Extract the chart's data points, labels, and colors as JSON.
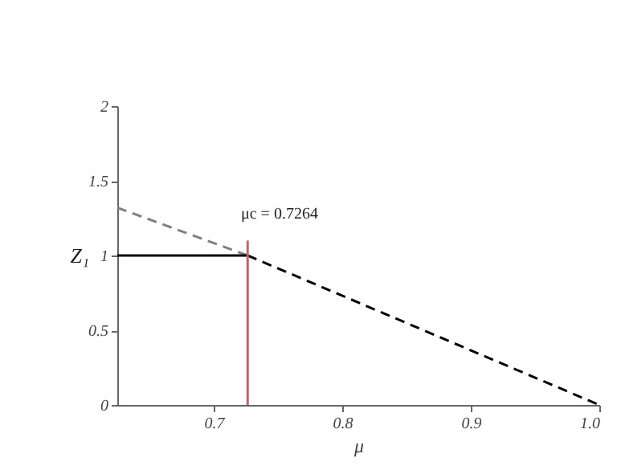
{
  "chart_data": {
    "type": "line",
    "xlabel": "μ",
    "ylabel": "Z₁",
    "xlim": [
      0.625,
      1.0
    ],
    "xticks": [
      0.7,
      0.8,
      0.9,
      {
        "value": 1.0,
        "label": "1.0"
      }
    ],
    "ylim": [
      0,
      2
    ],
    "yticks": [
      0,
      0.5,
      1,
      1.5,
      2
    ],
    "series": [
      {
        "color": "#808080",
        "line_style": "dashed",
        "x": [
          0.625,
          0.7264
        ],
        "values": [
          1.32,
          1
        ]
      },
      {
        "color": "#000000",
        "line_style": "solid",
        "x": [
          0.625,
          0.7264
        ],
        "values": [
          1,
          1
        ]
      },
      {
        "color": "#000000",
        "line_style": "dashed",
        "x": [
          0.7264,
          1.0
        ],
        "values": [
          1,
          0
        ]
      },
      {
        "color": "#d06060",
        "line_style": "solid",
        "x": [
          0.7264,
          0.7264
        ],
        "values": [
          0,
          1.1
        ]
      }
    ],
    "annotations": [
      "μc = 0.7264"
    ],
    "grid": false,
    "marker": "none"
  }
}
